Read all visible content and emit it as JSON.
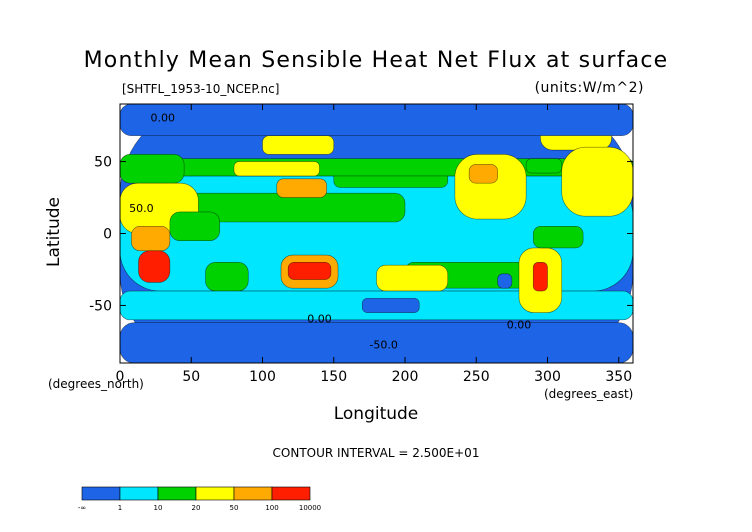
{
  "chart_data": {
    "type": "heatmap",
    "title": "Monthly Mean Sensible Heat Net Flux at surface",
    "subtitle_file": "[SHTFL_1953-10_NCEP.nc]",
    "units": "(units:W/m^2)",
    "xlabel": "Longitude",
    "ylabel": "Latitude",
    "x_unit": "(degrees_east)",
    "y_unit": "(degrees_north)",
    "xlim": [
      0,
      360
    ],
    "ylim": [
      -90,
      90
    ],
    "x_ticks": [
      "0",
      "50",
      "100",
      "150",
      "200",
      "250",
      "300",
      "350"
    ],
    "x_tick_values": [
      0,
      50,
      100,
      150,
      200,
      250,
      300,
      350
    ],
    "y_ticks": [
      "50",
      "0",
      "-50"
    ],
    "y_tick_values": [
      50,
      0,
      -50
    ],
    "contour_interval": "CONTOUR INTERVAL = 2.500E+01",
    "contour_labels": [
      {
        "text": "0.00",
        "lon": 30,
        "lat": 78
      },
      {
        "text": "50.0",
        "lon": 15,
        "lat": 15
      },
      {
        "text": "0.00",
        "lon": 140,
        "lat": -62
      },
      {
        "text": "0.00",
        "lon": 280,
        "lat": -66
      },
      {
        "text": "-50.0",
        "lon": 185,
        "lat": -80
      }
    ],
    "colorbar": {
      "boundaries": [
        "-∞",
        "1",
        "10",
        "20",
        "50",
        "100",
        "10000"
      ],
      "colors": [
        "#1e64e6",
        "#00e6ff",
        "#00d200",
        "#ffff00",
        "#ffaa00",
        "#ff1e00"
      ]
    },
    "regions": [
      {
        "level": 0,
        "lon": [
          0,
          360
        ],
        "lat": [
          -90,
          90
        ]
      },
      {
        "level": 1,
        "lon": [
          0,
          360
        ],
        "lat": [
          -40,
          40
        ]
      },
      {
        "level": 2,
        "lon": [
          40,
          200
        ],
        "lat": [
          8,
          28
        ]
      },
      {
        "level": 2,
        "lon": [
          200,
          300
        ],
        "lat": [
          -38,
          -20
        ]
      },
      {
        "level": 2,
        "lon": [
          60,
          90
        ],
        "lat": [
          -40,
          -20
        ]
      },
      {
        "level": 2,
        "lon": [
          150,
          230
        ],
        "lat": [
          32,
          45
        ]
      },
      {
        "level": 3,
        "lon": [
          180,
          230
        ],
        "lat": [
          -40,
          -22
        ]
      },
      {
        "level": 1,
        "lon": [
          0,
          360
        ],
        "lat": [
          -60,
          -40
        ]
      },
      {
        "level": 0,
        "lon": [
          170,
          210
        ],
        "lat": [
          -55,
          -45
        ]
      },
      {
        "level": 0,
        "lon": [
          265,
          275
        ],
        "lat": [
          -38,
          -28
        ]
      },
      {
        "level": 2,
        "lon": [
          0,
          360
        ],
        "lat": [
          40,
          52
        ]
      },
      {
        "level": 3,
        "lon": [
          100,
          150
        ],
        "lat": [
          55,
          68
        ]
      },
      {
        "level": 3,
        "lon": [
          80,
          140
        ],
        "lat": [
          40,
          50
        ]
      },
      {
        "level": 4,
        "lon": [
          110,
          145
        ],
        "lat": [
          25,
          38
        ]
      },
      {
        "level": 2,
        "lon": [
          0,
          45
        ],
        "lat": [
          35,
          55
        ]
      },
      {
        "level": 3,
        "lon": [
          0,
          55
        ],
        "lat": [
          0,
          35
        ]
      },
      {
        "level": 2,
        "lon": [
          35,
          70
        ],
        "lat": [
          -5,
          15
        ]
      },
      {
        "level": 4,
        "lon": [
          8,
          35
        ],
        "lat": [
          -12,
          5
        ]
      },
      {
        "level": 5,
        "lon": [
          13,
          35
        ],
        "lat": [
          -34,
          -12
        ]
      },
      {
        "level": 4,
        "lon": [
          113,
          153
        ],
        "lat": [
          -38,
          -15
        ]
      },
      {
        "level": 5,
        "lon": [
          118,
          148
        ],
        "lat": [
          -32,
          -20
        ]
      },
      {
        "level": 3,
        "lon": [
          235,
          285
        ],
        "lat": [
          10,
          55
        ]
      },
      {
        "level": 4,
        "lon": [
          245,
          265
        ],
        "lat": [
          35,
          48
        ]
      },
      {
        "level": 2,
        "lon": [
          285,
          310
        ],
        "lat": [
          42,
          52
        ]
      },
      {
        "level": 3,
        "lon": [
          280,
          310
        ],
        "lat": [
          -55,
          -10
        ]
      },
      {
        "level": 5,
        "lon": [
          290,
          300
        ],
        "lat": [
          -40,
          -20
        ]
      },
      {
        "level": 2,
        "lon": [
          290,
          325
        ],
        "lat": [
          -10,
          5
        ]
      },
      {
        "level": 3,
        "lon": [
          295,
          345
        ],
        "lat": [
          58,
          82
        ]
      },
      {
        "level": 3,
        "lon": [
          310,
          360
        ],
        "lat": [
          12,
          60
        ]
      },
      {
        "level": 0,
        "lon": [
          0,
          360
        ],
        "lat": [
          68,
          90
        ]
      },
      {
        "level": 0,
        "lon": [
          0,
          360
        ],
        "lat": [
          -90,
          -62
        ]
      }
    ]
  }
}
